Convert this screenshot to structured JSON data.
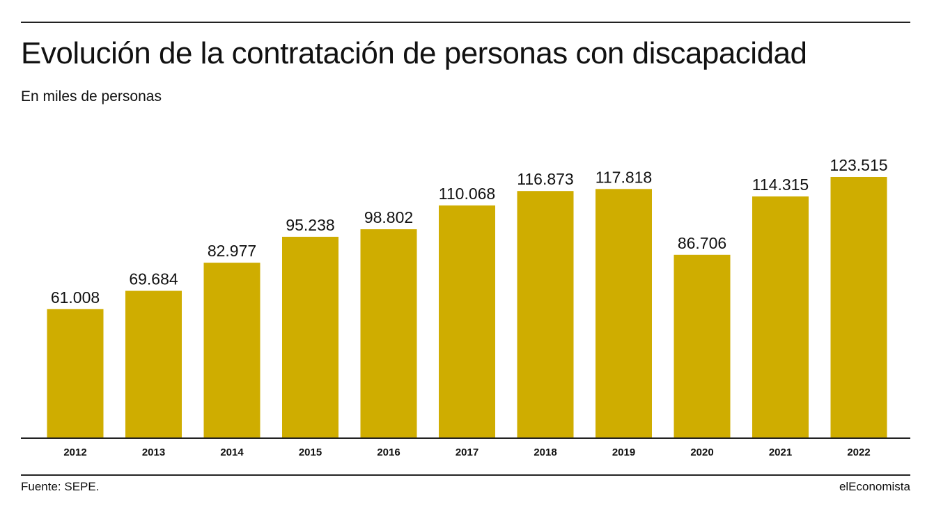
{
  "header": {
    "title": "Evolución de la contratación de personas con discapacidad",
    "subtitle": "En miles de personas"
  },
  "footer": {
    "source": "Fuente: SEPE.",
    "brand": "elEconomista"
  },
  "colors": {
    "bar": "#cfad00",
    "axis": "#222222",
    "text": "#111111"
  },
  "chart_data": {
    "type": "bar",
    "title": "Evolución de la contratación de personas con discapacidad",
    "subtitle": "En miles de personas",
    "xlabel": "",
    "ylabel": "",
    "grid": false,
    "ylim": [
      0,
      140
    ],
    "categories": [
      "2012",
      "2013",
      "2014",
      "2015",
      "2016",
      "2017",
      "2018",
      "2019",
      "2020",
      "2021",
      "2022"
    ],
    "values": [
      61.008,
      69.684,
      82.977,
      95.238,
      98.802,
      110.068,
      116.873,
      117.818,
      86.706,
      114.315,
      123.515
    ],
    "data_labels": [
      "61.008",
      "69.684",
      "82.977",
      "95.238",
      "98.802",
      "110.068",
      "116.873",
      "117.818",
      "86.706",
      "114.315",
      "123.515"
    ]
  }
}
